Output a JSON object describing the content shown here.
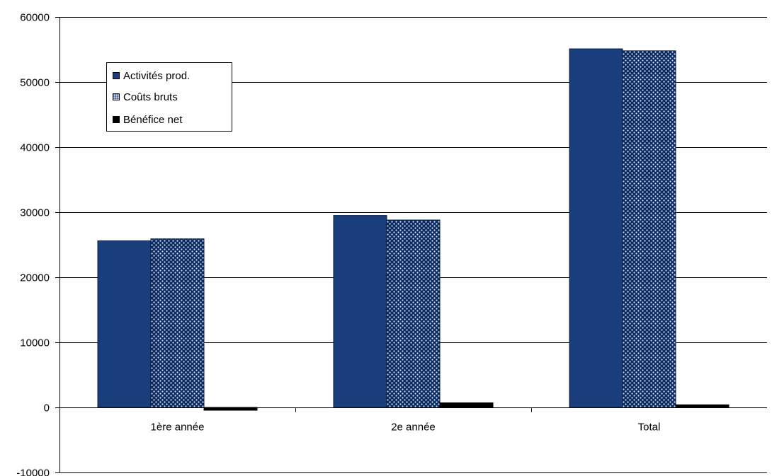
{
  "chart_data": {
    "type": "bar",
    "categories": [
      "1ère année",
      "2e année",
      "Total"
    ],
    "series": [
      {
        "name": "Activités prod.",
        "values": [
          25600,
          29500,
          55100
        ],
        "color": "#1a3e7c",
        "fill": "solid"
      },
      {
        "name": "Coûts bruts",
        "values": [
          25900,
          28800,
          54800
        ],
        "color": "#1a3e7c",
        "fill": "pattern"
      },
      {
        "name": "Bénéfice net",
        "values": [
          -300,
          700,
          400
        ],
        "color": "#000000",
        "fill": "solid"
      }
    ],
    "ylim": [
      -10000,
      60000
    ],
    "yticks": [
      -10000,
      0,
      10000,
      20000,
      30000,
      40000,
      50000,
      60000
    ],
    "grid": true,
    "legend_position": "top-left",
    "title": "",
    "xlabel": "",
    "ylabel": ""
  }
}
